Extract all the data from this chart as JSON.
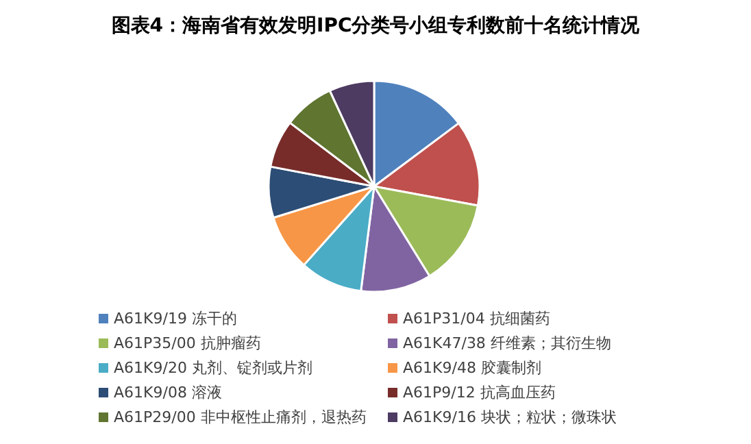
{
  "chart_data": {
    "type": "pie",
    "title": "图表4：海南省有效发明IPC分类号小组专利数前十名统计情况",
    "legend": "bottom",
    "categories": [
      "A61K9/19 冻干的",
      "A61P31/04 抗细菌药",
      "A61P35/00 抗肿瘤药",
      "A61K47/38 纤维素；其衍生物",
      "A61K9/20 丸剂、锭剂或片剂",
      "A61K9/48 胶囊制剂",
      "A61K9/08 溶液",
      "A61P9/12 抗高血压药",
      "A61P29/00 非中枢性止痛剂，退热药",
      "A61K9/16 块状；粒状；微珠状"
    ],
    "values": [
      14.8,
      13.1,
      13.3,
      10.8,
      9.6,
      8.6,
      7.8,
      7.3,
      7.8,
      6.9
    ],
    "colors": [
      "#4f81bd",
      "#c0504d",
      "#9bbb59",
      "#8064a2",
      "#4bacc6",
      "#f79646",
      "#2c4d75",
      "#772c2a",
      "#5f7530",
      "#4d3b62"
    ]
  }
}
